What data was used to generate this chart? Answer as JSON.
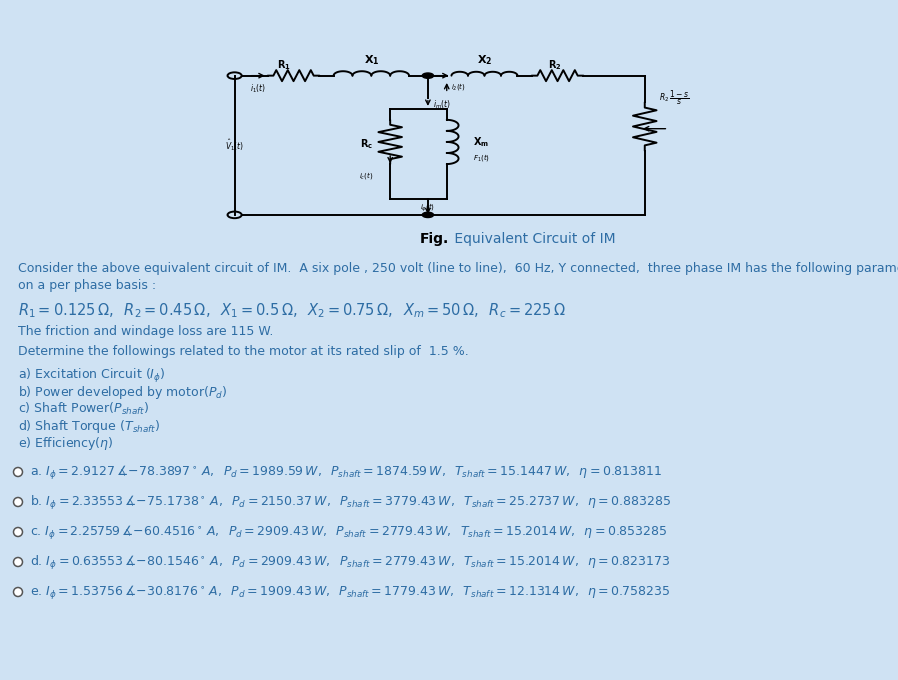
{
  "bg_color": "#cfe2f3",
  "circuit_bg": "#ffffff",
  "text_color": "#2e6da4",
  "title_fig_bold": "Fig.",
  "title_fig_rest": " Equivalent Circuit of IM",
  "intro_line1": "Consider the above equivalent circuit of IM.  A six pole , 250 volt (line to line),  60 Hz, Y connected,  three phase IM has the following parameters",
  "intro_line2": "on a per phase basis :",
  "params_text": "R_1 = 0.125 \\Omega,\\; R_2 = 0.45 \\Omega,\\; X_1 = 0.5 \\Omega,\\; X_2 = 0.75 \\Omega,\\; X_m = 50 \\Omega,\\; R_c = 225 \\Omega",
  "friction_text": "The friction and windage loss are 115 W.",
  "determine_text": "Determine the followings related to the motor at its rated slip of  1.5 %.",
  "questions": [
    "a) Excitation Circuit ($I_\\phi$)",
    "b) Power developed by motor($P_d$)",
    "c) Shaft Power($P_{shaft}$)",
    "d) Shaft Torque ($T_{shaft}$)",
    "e) Efficiency($\\eta$)"
  ],
  "answer_labels": [
    "a.",
    "b.",
    "c.",
    "d.",
    "e."
  ],
  "answer_parts": [
    [
      "$I_\\phi = 2.9127 \\angle{-78.3897^\\circ}\\,A$",
      "$P_d = 1989.59\\,W$",
      "$P_{shaft} = 1874.59\\,W$",
      "$T_{shaft} = 15.1447\\,W$",
      "$\\eta = 0.813811$"
    ],
    [
      "$I_\\phi = 2.33553 \\angle{-75.1738^\\circ}\\,A$",
      "$P_d = 2150.37\\,W$",
      "$P_{shaft} = 3779.43\\,W$",
      "$T_{shaft} = 25.2737\\,W$",
      "$\\eta = 0.883285$"
    ],
    [
      "$I_\\phi = 2.25759 \\angle{-60.4516^\\circ}\\,A$",
      "$P_d = 2909.43\\,W$",
      "$P_{shaft} = 2779.43\\,W$",
      "$T_{shaft} = 15.2014\\,W$",
      "$\\eta = 0.853285$"
    ],
    [
      "$I_\\phi = 0.63553 \\angle{-80.1546^\\circ}\\,A$",
      "$P_d = 2909.43\\,W$",
      "$P_{shaft} = 2779.43\\,W$",
      "$T_{shaft} = 15.2014\\,W$",
      "$\\eta = 0.823173$"
    ],
    [
      "$I_\\phi = 1.53756 \\angle{-30.8176^\\circ}\\,A$",
      "$P_d = 1909.43\\,W$",
      "$P_{shaft} = 1779.43\\,W$",
      "$T_{shaft} = 12.1314\\,W$",
      "$\\eta = 0.758235$"
    ]
  ]
}
